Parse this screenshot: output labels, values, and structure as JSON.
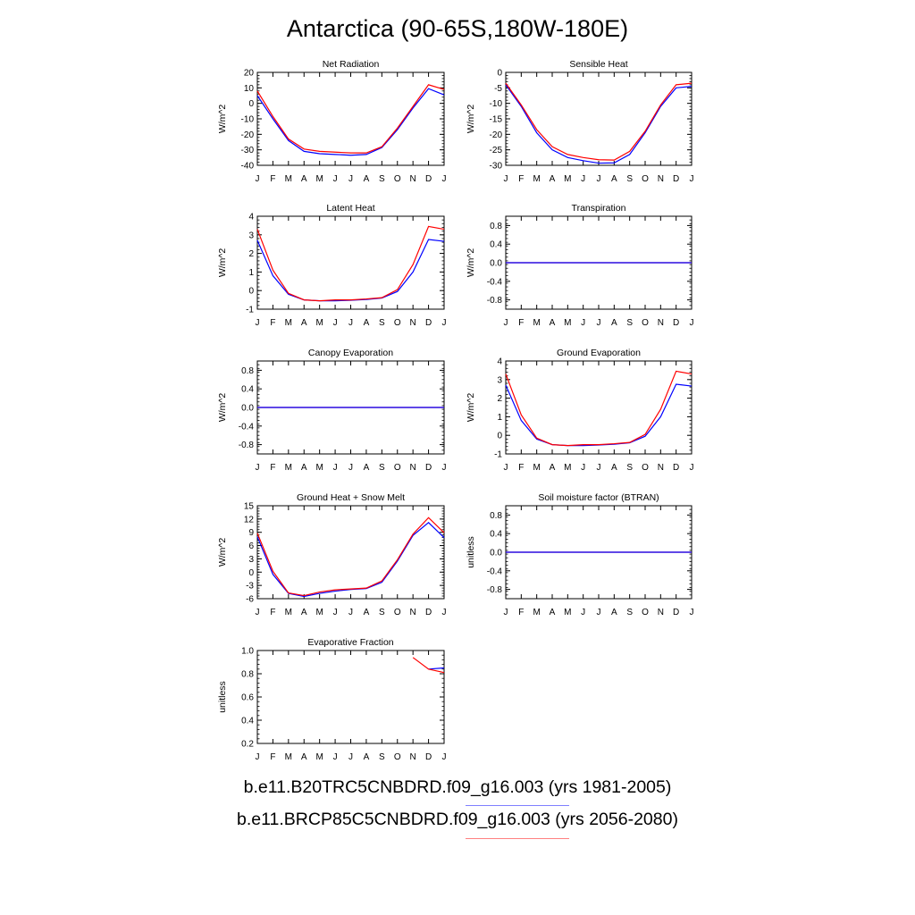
{
  "title": "Antarctica (90-65S,180W-180E)",
  "colors": {
    "series1": "#0000ff",
    "series2": "#ff0000"
  },
  "legend": [
    {
      "label": "b.e11.B20TRC5CNBDRD.f09_g16.003 (yrs 1981-2005)",
      "color": "#8080ff"
    },
    {
      "label": "b.e11.BRCP85C5CNBDRD.f09_g16.003 (yrs 2056-2080)",
      "color": "#ff8080"
    }
  ],
  "chart_data": [
    {
      "type": "line",
      "title": "Net Radiation",
      "ylabel": "W/m^2",
      "x": [
        "J",
        "F",
        "M",
        "A",
        "M",
        "J",
        "J",
        "A",
        "S",
        "O",
        "N",
        "D",
        "J"
      ],
      "ylim": [
        -40,
        20
      ],
      "yticks": [
        -40,
        -30,
        -20,
        -10,
        0,
        10,
        20
      ],
      "series": [
        {
          "color": "#0000ff",
          "values": [
            5,
            -10,
            -24,
            -31,
            -32.5,
            -33,
            -33.5,
            -33,
            -28.5,
            -17,
            -3,
            9.5,
            5.5
          ]
        },
        {
          "color": "#ff0000",
          "values": [
            8,
            -8.5,
            -23,
            -29.5,
            -31,
            -31.5,
            -32,
            -32,
            -28,
            -16,
            -2,
            12,
            9
          ]
        }
      ]
    },
    {
      "type": "line",
      "title": "Sensible Heat",
      "ylabel": "W/m^2",
      "x": [
        "J",
        "F",
        "M",
        "A",
        "M",
        "J",
        "J",
        "A",
        "S",
        "O",
        "N",
        "D",
        "J"
      ],
      "ylim": [
        -30,
        0
      ],
      "yticks": [
        -30,
        -25,
        -20,
        -15,
        -10,
        -5,
        0
      ],
      "series": [
        {
          "color": "#0000ff",
          "values": [
            -4,
            -11,
            -19.5,
            -25,
            -27.5,
            -28.5,
            -29.3,
            -29.2,
            -26.5,
            -19.5,
            -11,
            -5,
            -4.5
          ]
        },
        {
          "color": "#ff0000",
          "values": [
            -3.5,
            -10.5,
            -18.5,
            -24,
            -26.5,
            -27.5,
            -28.2,
            -28.3,
            -25.5,
            -19,
            -10.5,
            -4,
            -3.5
          ]
        }
      ]
    },
    {
      "type": "line",
      "title": "Latent Heat",
      "ylabel": "W/m^2",
      "x": [
        "J",
        "F",
        "M",
        "A",
        "M",
        "J",
        "J",
        "A",
        "S",
        "O",
        "N",
        "D",
        "J"
      ],
      "ylim": [
        -1,
        4
      ],
      "yticks": [
        -1.0,
        0.0,
        1.0,
        2.0,
        3.0,
        4.0
      ],
      "series": [
        {
          "color": "#0000ff",
          "values": [
            2.7,
            0.8,
            -0.2,
            -0.5,
            -0.55,
            -0.55,
            -0.52,
            -0.48,
            -0.4,
            -0.05,
            1.0,
            2.75,
            2.65
          ]
        },
        {
          "color": "#ff0000",
          "values": [
            3.3,
            1.1,
            -0.15,
            -0.5,
            -0.55,
            -0.5,
            -0.5,
            -0.45,
            -0.38,
            0.05,
            1.4,
            3.45,
            3.3
          ]
        }
      ]
    },
    {
      "type": "line",
      "title": "Transpiration",
      "ylabel": "W/m^2",
      "x": [
        "J",
        "F",
        "M",
        "A",
        "M",
        "J",
        "J",
        "A",
        "S",
        "O",
        "N",
        "D",
        "J"
      ],
      "ylim": [
        -1,
        1
      ],
      "yticks": [
        -0.8,
        -0.4,
        0.0,
        0.4,
        0.8
      ],
      "series": [
        {
          "color": "#ff0000",
          "values": [
            0,
            0,
            0,
            0,
            0,
            0,
            0,
            0,
            0,
            0,
            0,
            0,
            0
          ]
        },
        {
          "color": "#0000ff",
          "values": [
            0,
            0,
            0,
            0,
            0,
            0,
            0,
            0,
            0,
            0,
            0,
            0,
            0
          ]
        }
      ]
    },
    {
      "type": "line",
      "title": "Canopy Evaporation",
      "ylabel": "W/m^2",
      "x": [
        "J",
        "F",
        "M",
        "A",
        "M",
        "J",
        "J",
        "A",
        "S",
        "O",
        "N",
        "D",
        "J"
      ],
      "ylim": [
        -1,
        1
      ],
      "yticks": [
        -0.8,
        -0.4,
        0.0,
        0.4,
        0.8
      ],
      "series": [
        {
          "color": "#ff0000",
          "values": [
            0,
            0,
            0,
            0,
            0,
            0,
            0,
            0,
            0,
            0,
            0,
            0,
            0
          ]
        },
        {
          "color": "#0000ff",
          "values": [
            0,
            0,
            0,
            0,
            0,
            0,
            0,
            0,
            0,
            0,
            0,
            0,
            0
          ]
        }
      ]
    },
    {
      "type": "line",
      "title": "Ground Evaporation",
      "ylabel": "W/m^2",
      "x": [
        "J",
        "F",
        "M",
        "A",
        "M",
        "J",
        "J",
        "A",
        "S",
        "O",
        "N",
        "D",
        "J"
      ],
      "ylim": [
        -1,
        4
      ],
      "yticks": [
        -1.0,
        0.0,
        1.0,
        2.0,
        3.0,
        4.0
      ],
      "series": [
        {
          "color": "#0000ff",
          "values": [
            2.7,
            0.8,
            -0.2,
            -0.5,
            -0.55,
            -0.55,
            -0.52,
            -0.48,
            -0.4,
            -0.05,
            1.0,
            2.75,
            2.65
          ]
        },
        {
          "color": "#ff0000",
          "values": [
            3.3,
            1.1,
            -0.15,
            -0.5,
            -0.55,
            -0.5,
            -0.5,
            -0.45,
            -0.38,
            0.05,
            1.4,
            3.45,
            3.3
          ]
        }
      ]
    },
    {
      "type": "line",
      "title": "Ground Heat + Snow Melt",
      "ylabel": "W/m^2",
      "x": [
        "J",
        "F",
        "M",
        "A",
        "M",
        "J",
        "J",
        "A",
        "S",
        "O",
        "N",
        "D",
        "J"
      ],
      "ylim": [
        -6,
        15
      ],
      "yticks": [
        -6,
        -3,
        0,
        3,
        6,
        9,
        12,
        15
      ],
      "series": [
        {
          "color": "#0000ff",
          "values": [
            8,
            -0.5,
            -4.8,
            -5.5,
            -4.8,
            -4.3,
            -3.9,
            -3.7,
            -2.3,
            2.5,
            8.3,
            11.2,
            7.8
          ]
        },
        {
          "color": "#ff0000",
          "values": [
            8.8,
            0.2,
            -4.7,
            -5.3,
            -4.5,
            -4,
            -3.8,
            -3.6,
            -2,
            2.8,
            8.6,
            12.3,
            8.9
          ]
        }
      ]
    },
    {
      "type": "line",
      "title": "Soil moisture factor (BTRAN)",
      "ylabel": "unitless",
      "x": [
        "J",
        "F",
        "M",
        "A",
        "M",
        "J",
        "J",
        "A",
        "S",
        "O",
        "N",
        "D",
        "J"
      ],
      "ylim": [
        -1,
        1
      ],
      "yticks": [
        -0.8,
        -0.4,
        0.0,
        0.4,
        0.8
      ],
      "series": [
        {
          "color": "#ff0000",
          "values": [
            0,
            0,
            0,
            0,
            0,
            0,
            0,
            0,
            0,
            0,
            0,
            0,
            0
          ]
        },
        {
          "color": "#0000ff",
          "values": [
            0,
            0,
            0,
            0,
            0,
            0,
            0,
            0,
            0,
            0,
            0,
            0,
            0
          ]
        }
      ]
    },
    {
      "type": "line",
      "title": "Evaporative Fraction",
      "ylabel": "unitless",
      "x": [
        "J",
        "F",
        "M",
        "A",
        "M",
        "J",
        "J",
        "A",
        "S",
        "O",
        "N",
        "D",
        "J"
      ],
      "ylim": [
        0.2,
        1.0
      ],
      "yticks": [
        0.2,
        0.4,
        0.6,
        0.8,
        1.0
      ],
      "series": [
        {
          "color": "#0000ff",
          "values": [
            null,
            null,
            null,
            null,
            null,
            null,
            null,
            null,
            null,
            null,
            null,
            0.84,
            0.85
          ]
        },
        {
          "color": "#ff0000",
          "values": [
            null,
            null,
            null,
            null,
            null,
            null,
            null,
            null,
            null,
            null,
            0.94,
            0.84,
            0.81
          ]
        }
      ]
    }
  ]
}
